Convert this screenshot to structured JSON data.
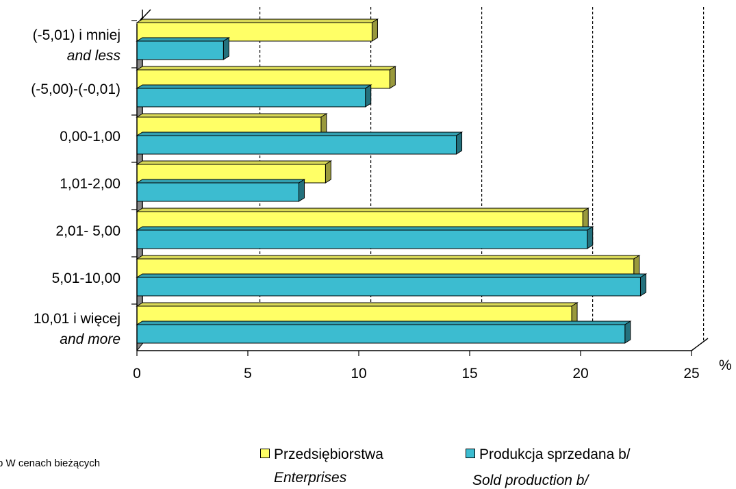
{
  "chart_data": {
    "type": "bar",
    "orientation": "horizontal",
    "categories": [
      {
        "line1": "(-5,01) i mniej",
        "line2": "and less"
      },
      {
        "line1": "(-5,00)-(-0,01)",
        "line2": ""
      },
      {
        "line1": "0,00-1,00",
        "line2": ""
      },
      {
        "line1": "1,01-2,00",
        "line2": ""
      },
      {
        "line1": "2,01- 5,00",
        "line2": ""
      },
      {
        "line1": "5,01-10,00",
        "line2": ""
      },
      {
        "line1": "10,01 i więcej",
        "line2": "and more"
      }
    ],
    "series": [
      {
        "name": "Przedsiębiorstwa",
        "name_en": "Enterprises",
        "color": "#ffff66",
        "values": [
          10.6,
          11.4,
          8.3,
          8.5,
          20.1,
          22.4,
          19.6
        ]
      },
      {
        "name": "Produkcja sprzedana b/",
        "name_en": "Sold production b/",
        "color": "#3cbcd0",
        "values": [
          3.9,
          10.3,
          14.4,
          7.3,
          20.3,
          22.7,
          22.0
        ]
      }
    ],
    "x_ticks": [
      "0",
      "5",
      "10",
      "15",
      "20",
      "25"
    ],
    "xlim": [
      0,
      25
    ],
    "x_unit": "%",
    "grid": "vertical dashed",
    "legend_position": "bottom"
  },
  "footnote": "b  W cenach bieżących"
}
